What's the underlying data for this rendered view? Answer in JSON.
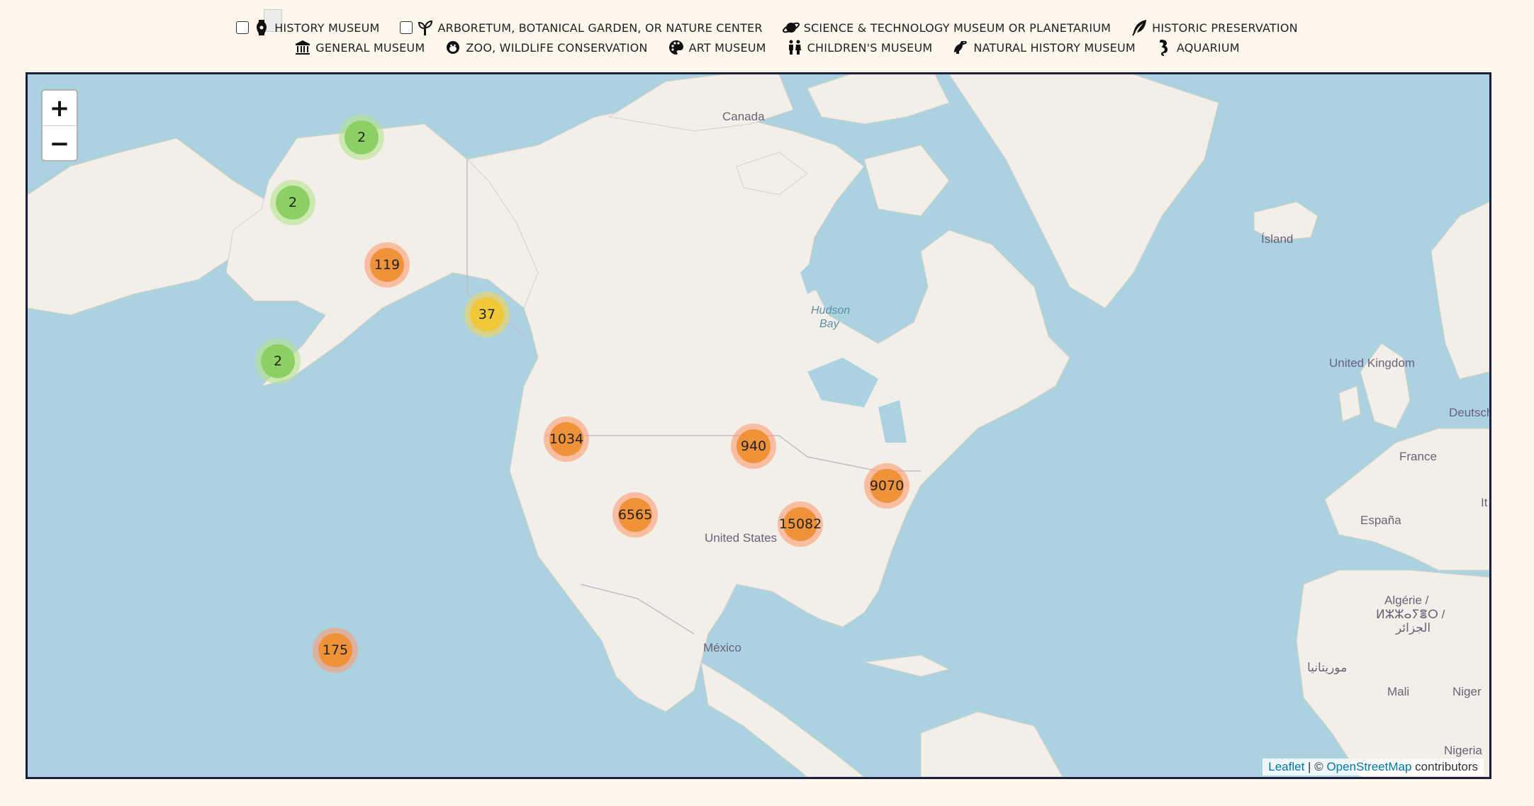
{
  "legend": {
    "row1": [
      {
        "label": "HISTORY MUSEUM",
        "icon": "vase-icon",
        "checkbox": true
      },
      {
        "label": "ARBORETUM, BOTANICAL GARDEN, OR NATURE CENTER",
        "icon": "leaves-icon",
        "checkbox": true
      },
      {
        "label": "SCIENCE & TECHNOLOGY MUSEUM OR PLANETARIUM",
        "icon": "planet-icon",
        "checkbox": false
      },
      {
        "label": "HISTORIC PRESERVATION",
        "icon": "quill-icon",
        "checkbox": false
      }
    ],
    "row2": [
      {
        "label": "GENERAL MUSEUM",
        "icon": "institution-icon"
      },
      {
        "label": "ZOO, WILDLIFE CONSERVATION",
        "icon": "monkey-icon"
      },
      {
        "label": "ART MUSEUM",
        "icon": "palette-icon"
      },
      {
        "label": "CHILDREN'S MUSEUM",
        "icon": "children-icon"
      },
      {
        "label": "NATURAL HISTORY MUSEUM",
        "icon": "dinosaur-icon"
      },
      {
        "label": "AQUARIUM",
        "icon": "seahorse-icon"
      }
    ]
  },
  "map": {
    "zoom_in": "+",
    "zoom_out": "−",
    "labels": {
      "canada": "Canada",
      "united_states": "United States",
      "mexico": "México",
      "hudson": "Hudson",
      "bay": "Bay",
      "island": "Ísland",
      "uk": "United Kingdom",
      "france": "France",
      "espana": "España",
      "deutschland": "Deutschl",
      "algerie1": "Algérie /",
      "algerie2": "ⵍⵣⵣⴰⵢⴻⵔ /",
      "algerie3": "الجزائر",
      "mauritania": "موريتانيا",
      "mali": "Mali",
      "niger": "Niger",
      "nigeria": "Nigeria",
      "it": "It"
    },
    "clusters": [
      {
        "count": "2",
        "color": "green"
      },
      {
        "count": "2",
        "color": "green"
      },
      {
        "count": "119",
        "color": "orange"
      },
      {
        "count": "37",
        "color": "yellow"
      },
      {
        "count": "2",
        "color": "green"
      },
      {
        "count": "1034",
        "color": "orange"
      },
      {
        "count": "940",
        "color": "orange"
      },
      {
        "count": "9070",
        "color": "orange"
      },
      {
        "count": "6565",
        "color": "orange"
      },
      {
        "count": "15082",
        "color": "orange"
      },
      {
        "count": "175",
        "color": "orange"
      }
    ],
    "attribution": {
      "leaflet": "Leaflet",
      "separator": " | © ",
      "osm": "OpenStreetMap",
      "contributors": " contributors"
    }
  },
  "colors": {
    "page_bg": "#fdf7ec",
    "water": "#aad3df",
    "land": "#f2efe9",
    "map_border": "#1b1f3a",
    "cluster_green_outer": "rgba(181,226,140,0.6)",
    "cluster_green_inner": "#8cd064",
    "cluster_yellow_outer": "rgba(241,211,87,0.6)",
    "cluster_yellow_inner": "#efc93a",
    "cluster_orange_outer": "rgba(253,156,115,0.6)",
    "cluster_orange_inner": "#f0923a"
  }
}
